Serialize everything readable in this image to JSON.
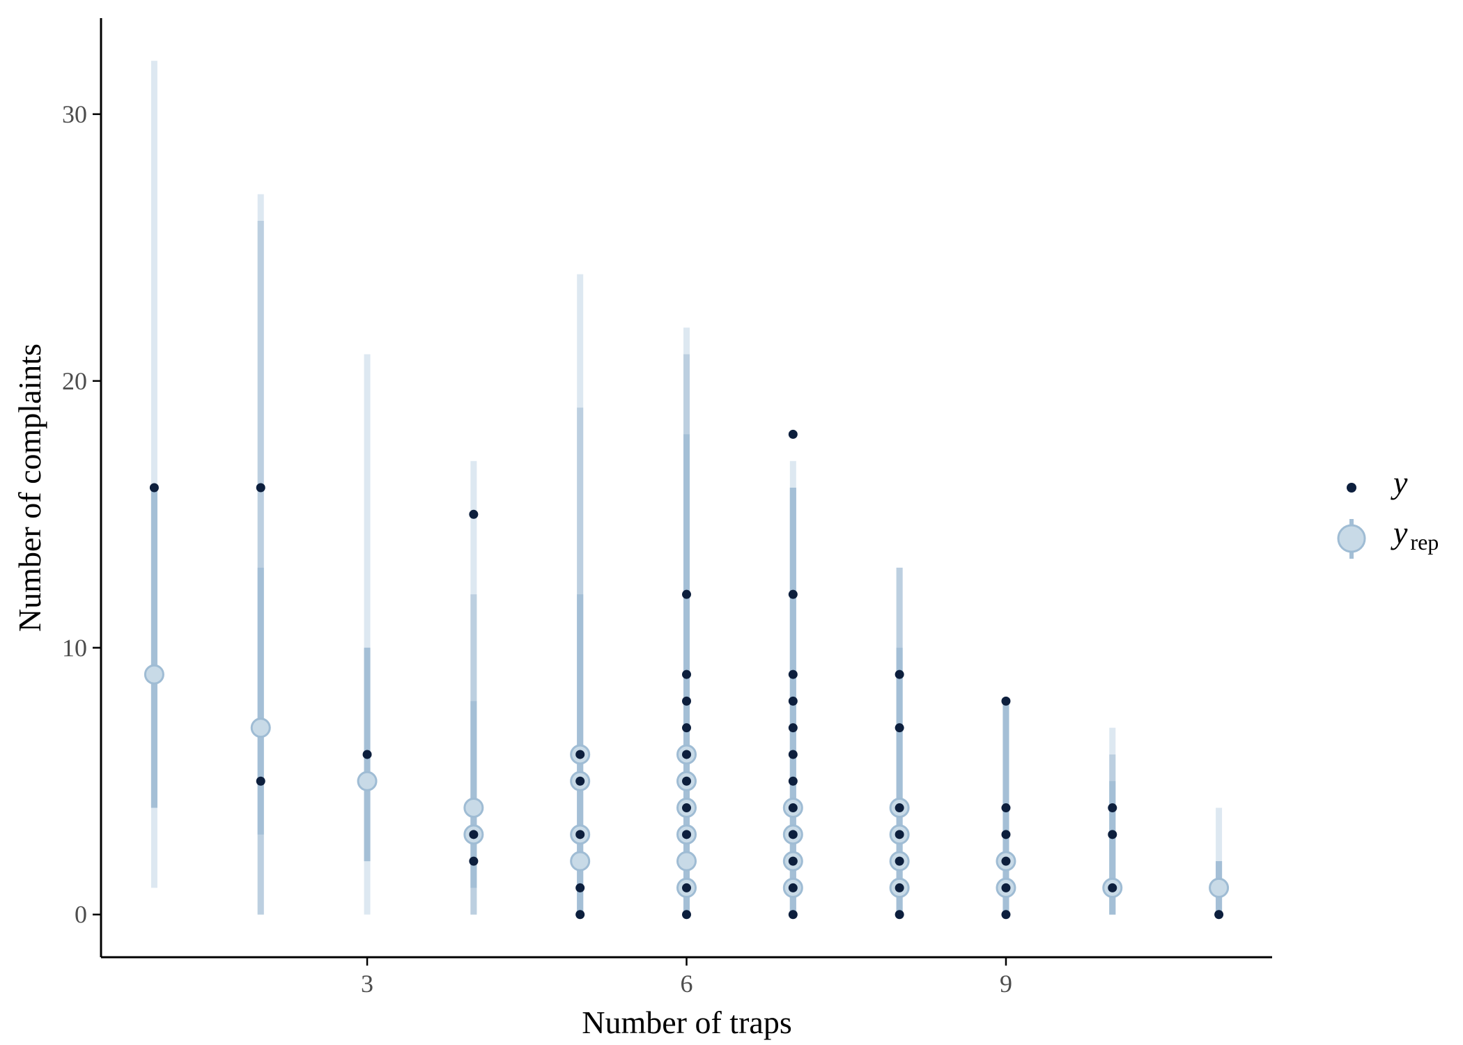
{
  "chart_data": {
    "type": "scatter",
    "xlabel": "Number of traps",
    "ylabel": "Number of complaints",
    "xlim": [
      0.5,
      11.5
    ],
    "ylim": [
      -1.6,
      33.6
    ],
    "x_ticks": [
      3,
      6,
      9
    ],
    "y_ticks": [
      0,
      10,
      20,
      30
    ],
    "grid": false,
    "legend_position": "right",
    "legend": [
      {
        "key": "y",
        "symbol": "y",
        "subscript": ""
      },
      {
        "key": "yrep",
        "symbol": "y",
        "subscript": "rep"
      }
    ],
    "colors": {
      "y_point": "#0d1f3d",
      "yrep_point_fill": "#c8dae7",
      "yrep_point_stroke": "#9fbcd4",
      "interval_inner": "#a4bfd6",
      "interval_mid": "#bccfe0",
      "interval_outer": "#dde8f1"
    },
    "series": [
      {
        "name": "y_rep",
        "intervals": [
          {
            "x": 1,
            "median": 9,
            "inner": [
              4,
              16
            ],
            "mid": [
              4,
              16
            ],
            "outer": [
              1,
              32
            ]
          },
          {
            "x": 2,
            "median": 7,
            "inner": [
              3,
              13
            ],
            "mid": [
              0,
              26
            ],
            "outer": [
              0,
              27
            ]
          },
          {
            "x": 3,
            "median": 5,
            "inner": [
              2,
              10
            ],
            "mid": [
              2,
              10
            ],
            "outer": [
              0,
              21
            ]
          },
          {
            "x": 4,
            "median": 4,
            "inner": [
              1,
              8
            ],
            "mid": [
              0,
              12
            ],
            "outer": [
              0,
              17
            ]
          },
          {
            "x": 5,
            "median": 2,
            "inner": [
              0,
              12
            ],
            "mid": [
              0,
              19
            ],
            "outer": [
              0,
              24
            ]
          },
          {
            "x": 6,
            "median": 2,
            "inner": [
              0,
              18
            ],
            "mid": [
              0,
              21
            ],
            "outer": [
              0,
              22
            ]
          },
          {
            "x": 7,
            "median": 4,
            "inner": [
              0,
              16
            ],
            "mid": [
              0,
              16
            ],
            "outer": [
              0,
              17
            ]
          },
          {
            "x": 8,
            "median": 2,
            "inner": [
              0,
              10
            ],
            "mid": [
              0,
              13
            ],
            "outer": [
              0,
              13
            ]
          },
          {
            "x": 9,
            "median": 1,
            "inner": [
              0,
              8
            ],
            "mid": [
              0,
              8
            ],
            "outer": [
              0,
              8
            ]
          },
          {
            "x": 10,
            "median": 1,
            "inner": [
              0,
              5
            ],
            "mid": [
              0,
              6
            ],
            "outer": [
              0,
              7
            ]
          },
          {
            "x": 11,
            "median": 1,
            "inner": [
              0,
              2
            ],
            "mid": [
              0,
              2
            ],
            "outer": [
              0,
              4
            ]
          }
        ],
        "extra_points": [
          {
            "x": 4,
            "y": 3
          },
          {
            "x": 5,
            "y": 6
          },
          {
            "x": 5,
            "y": 5
          },
          {
            "x": 5,
            "y": 3
          },
          {
            "x": 6,
            "y": 6
          },
          {
            "x": 6,
            "y": 5
          },
          {
            "x": 6,
            "y": 4
          },
          {
            "x": 6,
            "y": 3
          },
          {
            "x": 6,
            "y": 1
          },
          {
            "x": 7,
            "y": 3
          },
          {
            "x": 7,
            "y": 2
          },
          {
            "x": 7,
            "y": 1
          },
          {
            "x": 8,
            "y": 4
          },
          {
            "x": 8,
            "y": 3
          },
          {
            "x": 8,
            "y": 1
          },
          {
            "x": 9,
            "y": 2
          }
        ]
      },
      {
        "name": "y",
        "points": [
          {
            "x": 1,
            "y": 16
          },
          {
            "x": 2,
            "y": 16
          },
          {
            "x": 2,
            "y": 5
          },
          {
            "x": 3,
            "y": 6
          },
          {
            "x": 4,
            "y": 15
          },
          {
            "x": 4,
            "y": 3
          },
          {
            "x": 4,
            "y": 2
          },
          {
            "x": 5,
            "y": 6
          },
          {
            "x": 5,
            "y": 5
          },
          {
            "x": 5,
            "y": 3
          },
          {
            "x": 5,
            "y": 1
          },
          {
            "x": 5,
            "y": 0
          },
          {
            "x": 6,
            "y": 12
          },
          {
            "x": 6,
            "y": 9
          },
          {
            "x": 6,
            "y": 8
          },
          {
            "x": 6,
            "y": 7
          },
          {
            "x": 6,
            "y": 6
          },
          {
            "x": 6,
            "y": 5
          },
          {
            "x": 6,
            "y": 4
          },
          {
            "x": 6,
            "y": 3
          },
          {
            "x": 6,
            "y": 1
          },
          {
            "x": 6,
            "y": 0
          },
          {
            "x": 7,
            "y": 18
          },
          {
            "x": 7,
            "y": 12
          },
          {
            "x": 7,
            "y": 9
          },
          {
            "x": 7,
            "y": 8
          },
          {
            "x": 7,
            "y": 7
          },
          {
            "x": 7,
            "y": 6
          },
          {
            "x": 7,
            "y": 5
          },
          {
            "x": 7,
            "y": 4
          },
          {
            "x": 7,
            "y": 3
          },
          {
            "x": 7,
            "y": 2
          },
          {
            "x": 7,
            "y": 1
          },
          {
            "x": 7,
            "y": 0
          },
          {
            "x": 8,
            "y": 9
          },
          {
            "x": 8,
            "y": 7
          },
          {
            "x": 8,
            "y": 4
          },
          {
            "x": 8,
            "y": 3
          },
          {
            "x": 8,
            "y": 2
          },
          {
            "x": 8,
            "y": 1
          },
          {
            "x": 8,
            "y": 0
          },
          {
            "x": 9,
            "y": 8
          },
          {
            "x": 9,
            "y": 4
          },
          {
            "x": 9,
            "y": 3
          },
          {
            "x": 9,
            "y": 2
          },
          {
            "x": 9,
            "y": 1
          },
          {
            "x": 9,
            "y": 0
          },
          {
            "x": 10,
            "y": 4
          },
          {
            "x": 10,
            "y": 3
          },
          {
            "x": 10,
            "y": 1
          },
          {
            "x": 11,
            "y": 0
          }
        ]
      }
    ]
  }
}
